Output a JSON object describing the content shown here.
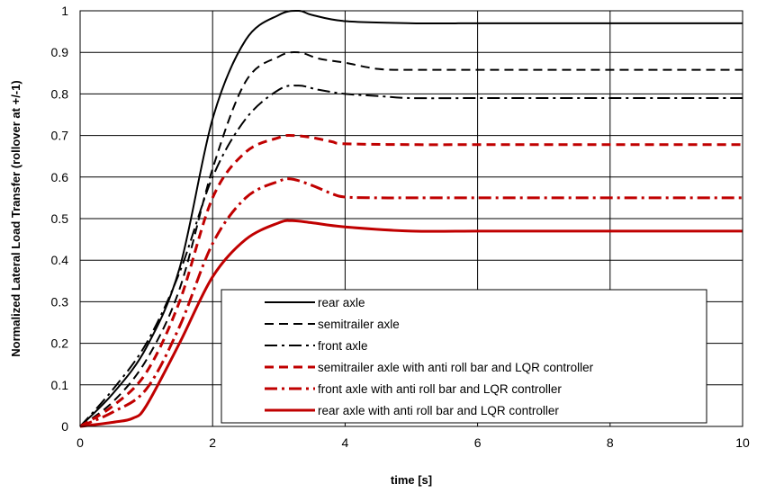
{
  "chart_data": {
    "type": "line",
    "title": "",
    "xlabel": "time [s]",
    "ylabel": "Normalized Lateral Load Transfer (rollover at +/-1)",
    "xlim": [
      0,
      10
    ],
    "ylim": [
      0,
      1
    ],
    "x_ticks": [
      0,
      2,
      4,
      6,
      8,
      10
    ],
    "y_ticks": [
      0,
      0.1,
      0.2,
      0.3,
      0.4,
      0.5,
      0.6,
      0.7,
      0.8,
      0.9,
      1
    ],
    "x_tick_labels": [
      "0",
      "2",
      "4",
      "6",
      "8",
      "10"
    ],
    "y_tick_labels": [
      "0",
      "0.1",
      "0.2",
      "0.3",
      "0.4",
      "0.5",
      "0.6",
      "0.7",
      "0.8",
      "0.9",
      "1"
    ],
    "grid": true,
    "legend_position": "bottom-right",
    "series": [
      {
        "name": "rear axle",
        "color": "#000000",
        "style": "solid",
        "points": [
          [
            0,
            0
          ],
          [
            0.5,
            0.08
          ],
          [
            1,
            0.19
          ],
          [
            1.5,
            0.38
          ],
          [
            2,
            0.74
          ],
          [
            2.5,
            0.93
          ],
          [
            3,
            0.99
          ],
          [
            3.3,
            1.0
          ],
          [
            3.5,
            0.99
          ],
          [
            4,
            0.975
          ],
          [
            5,
            0.97
          ],
          [
            6,
            0.97
          ],
          [
            7,
            0.97
          ],
          [
            8,
            0.97
          ],
          [
            9,
            0.97
          ],
          [
            10,
            0.97
          ]
        ]
      },
      {
        "name": "semitrailer axle",
        "color": "#000000",
        "style": "dashed",
        "points": [
          [
            0,
            0
          ],
          [
            0.5,
            0.06
          ],
          [
            1,
            0.16
          ],
          [
            1.5,
            0.33
          ],
          [
            2,
            0.62
          ],
          [
            2.5,
            0.83
          ],
          [
            3,
            0.89
          ],
          [
            3.3,
            0.9
          ],
          [
            3.6,
            0.885
          ],
          [
            4,
            0.875
          ],
          [
            4.5,
            0.86
          ],
          [
            5,
            0.858
          ],
          [
            6,
            0.858
          ],
          [
            7,
            0.858
          ],
          [
            8,
            0.858
          ],
          [
            9,
            0.858
          ],
          [
            10,
            0.858
          ]
        ]
      },
      {
        "name": "front axle",
        "color": "#000000",
        "style": "dashdot",
        "points": [
          [
            0,
            0
          ],
          [
            0.5,
            0.09
          ],
          [
            1,
            0.2
          ],
          [
            1.5,
            0.37
          ],
          [
            2,
            0.6
          ],
          [
            2.5,
            0.74
          ],
          [
            3,
            0.81
          ],
          [
            3.3,
            0.82
          ],
          [
            3.6,
            0.81
          ],
          [
            4,
            0.8
          ],
          [
            4.5,
            0.795
          ],
          [
            5,
            0.79
          ],
          [
            6,
            0.79
          ],
          [
            7,
            0.79
          ],
          [
            8,
            0.79
          ],
          [
            9,
            0.79
          ],
          [
            10,
            0.79
          ]
        ]
      },
      {
        "name": "semitrailer axle with anti roll bar and LQR controller",
        "color": "#c00000",
        "style": "dashed",
        "points": [
          [
            0,
            0
          ],
          [
            0.5,
            0.05
          ],
          [
            1,
            0.13
          ],
          [
            1.5,
            0.3
          ],
          [
            2,
            0.55
          ],
          [
            2.5,
            0.66
          ],
          [
            3,
            0.695
          ],
          [
            3.2,
            0.7
          ],
          [
            3.5,
            0.695
          ],
          [
            3.8,
            0.685
          ],
          [
            4,
            0.68
          ],
          [
            5,
            0.678
          ],
          [
            6,
            0.678
          ],
          [
            7,
            0.678
          ],
          [
            8,
            0.678
          ],
          [
            9,
            0.678
          ],
          [
            10,
            0.678
          ]
        ]
      },
      {
        "name": "front axle with anti roll bar and LQR controller",
        "color": "#c00000",
        "style": "dashdot",
        "points": [
          [
            0,
            0
          ],
          [
            0.5,
            0.035
          ],
          [
            1,
            0.09
          ],
          [
            1.5,
            0.24
          ],
          [
            2,
            0.44
          ],
          [
            2.5,
            0.55
          ],
          [
            3,
            0.59
          ],
          [
            3.2,
            0.595
          ],
          [
            3.5,
            0.58
          ],
          [
            3.8,
            0.56
          ],
          [
            4,
            0.552
          ],
          [
            4.5,
            0.55
          ],
          [
            5,
            0.55
          ],
          [
            6,
            0.55
          ],
          [
            7,
            0.55
          ],
          [
            8,
            0.55
          ],
          [
            9,
            0.55
          ],
          [
            10,
            0.55
          ]
        ]
      },
      {
        "name": "rear axle with anti roll bar and LQR controller",
        "color": "#c00000",
        "style": "solid",
        "points": [
          [
            0,
            0
          ],
          [
            0.5,
            0.01
          ],
          [
            0.8,
            0.02
          ],
          [
            1,
            0.05
          ],
          [
            1.5,
            0.2
          ],
          [
            2,
            0.36
          ],
          [
            2.5,
            0.45
          ],
          [
            3,
            0.49
          ],
          [
            3.2,
            0.495
          ],
          [
            3.5,
            0.49
          ],
          [
            4,
            0.48
          ],
          [
            5,
            0.47
          ],
          [
            6,
            0.47
          ],
          [
            7,
            0.47
          ],
          [
            8,
            0.47
          ],
          [
            9,
            0.47
          ],
          [
            10,
            0.47
          ]
        ]
      }
    ]
  }
}
